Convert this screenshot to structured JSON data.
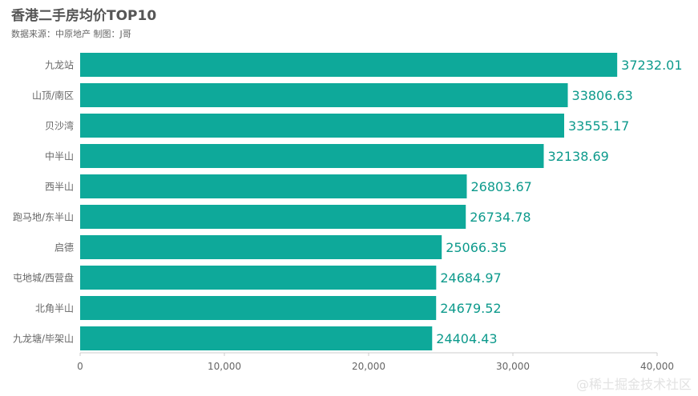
{
  "title": "香港二手房均价TOP10",
  "subtitle": "数据来源：中原地产   制图：J哥",
  "watermark": "@稀土掘金技术社区",
  "colors": {
    "bar": "#0ea99a",
    "value_label": "#0d9a8c",
    "axis": "#cccccc",
    "tick_label": "#666666"
  },
  "chart_data": {
    "type": "bar",
    "orientation": "horizontal",
    "title": "香港二手房均价TOP10",
    "subtitle": "数据来源：中原地产   制图：J哥",
    "categories": [
      "九龙站",
      "山顶/南区",
      "贝沙湾",
      "中半山",
      "西半山",
      "跑马地/东半山",
      "启德",
      "屯地城/西营盘",
      "北角半山",
      "九龙塘/毕架山"
    ],
    "values": [
      37232.01,
      33806.63,
      33555.17,
      32138.69,
      26803.67,
      26734.78,
      25066.35,
      24684.97,
      24679.52,
      24404.43
    ],
    "value_labels": [
      "37232.01",
      "33806.63",
      "33555.17",
      "32138.69",
      "26803.67",
      "26734.78",
      "25066.35",
      "24684.97",
      "24679.52",
      "24404.43"
    ],
    "xlim": [
      0,
      40000
    ],
    "xticks": [
      0,
      10000,
      20000,
      30000,
      40000
    ],
    "xtick_labels": [
      "0",
      "10,000",
      "20,000",
      "30,000",
      "40,000"
    ],
    "grid": false,
    "legend": "none"
  }
}
